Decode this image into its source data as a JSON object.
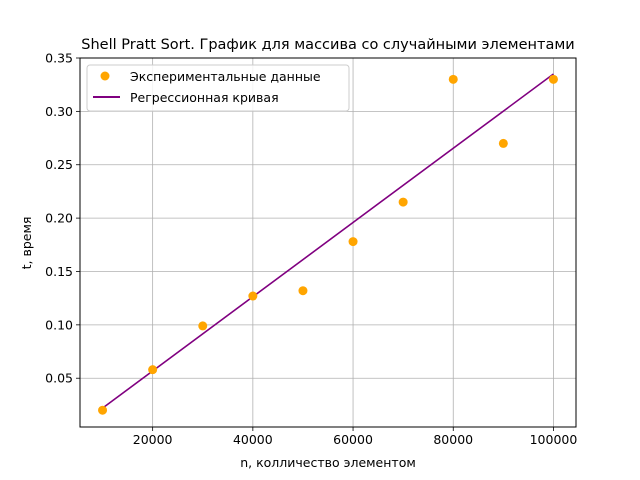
{
  "chart_data": {
    "type": "scatter",
    "title": "Shell Pratt Sort. График для массива со случайными элементами",
    "xlabel": "n, колличество элементом",
    "ylabel": "t, время",
    "xlim": [
      5500,
      104500
    ],
    "ylim": [
      0.0043,
      0.35
    ],
    "x_ticks": [
      20000,
      40000,
      60000,
      80000,
      100000
    ],
    "x_tick_labels": [
      "20000",
      "40000",
      "60000",
      "80000",
      "100000"
    ],
    "y_ticks": [
      0.05,
      0.1,
      0.15,
      0.2,
      0.25,
      0.3,
      0.35
    ],
    "y_tick_labels": [
      "0.05",
      "0.10",
      "0.15",
      "0.20",
      "0.25",
      "0.30",
      "0.35"
    ],
    "grid": true,
    "legend_position": "top-left",
    "series": [
      {
        "name": "Экспериментальные данные",
        "kind": "scatter",
        "color": "#ffa500",
        "x": [
          10000,
          20000,
          30000,
          40000,
          50000,
          60000,
          70000,
          80000,
          90000,
          100000
        ],
        "y": [
          0.02,
          0.058,
          0.099,
          0.127,
          0.132,
          0.178,
          0.215,
          0.33,
          0.27,
          0.33
        ]
      },
      {
        "name": "Регрессионная кривая",
        "kind": "line",
        "color": "#800080",
        "x": [
          10000,
          100000
        ],
        "y": [
          0.022,
          0.335
        ]
      }
    ]
  }
}
